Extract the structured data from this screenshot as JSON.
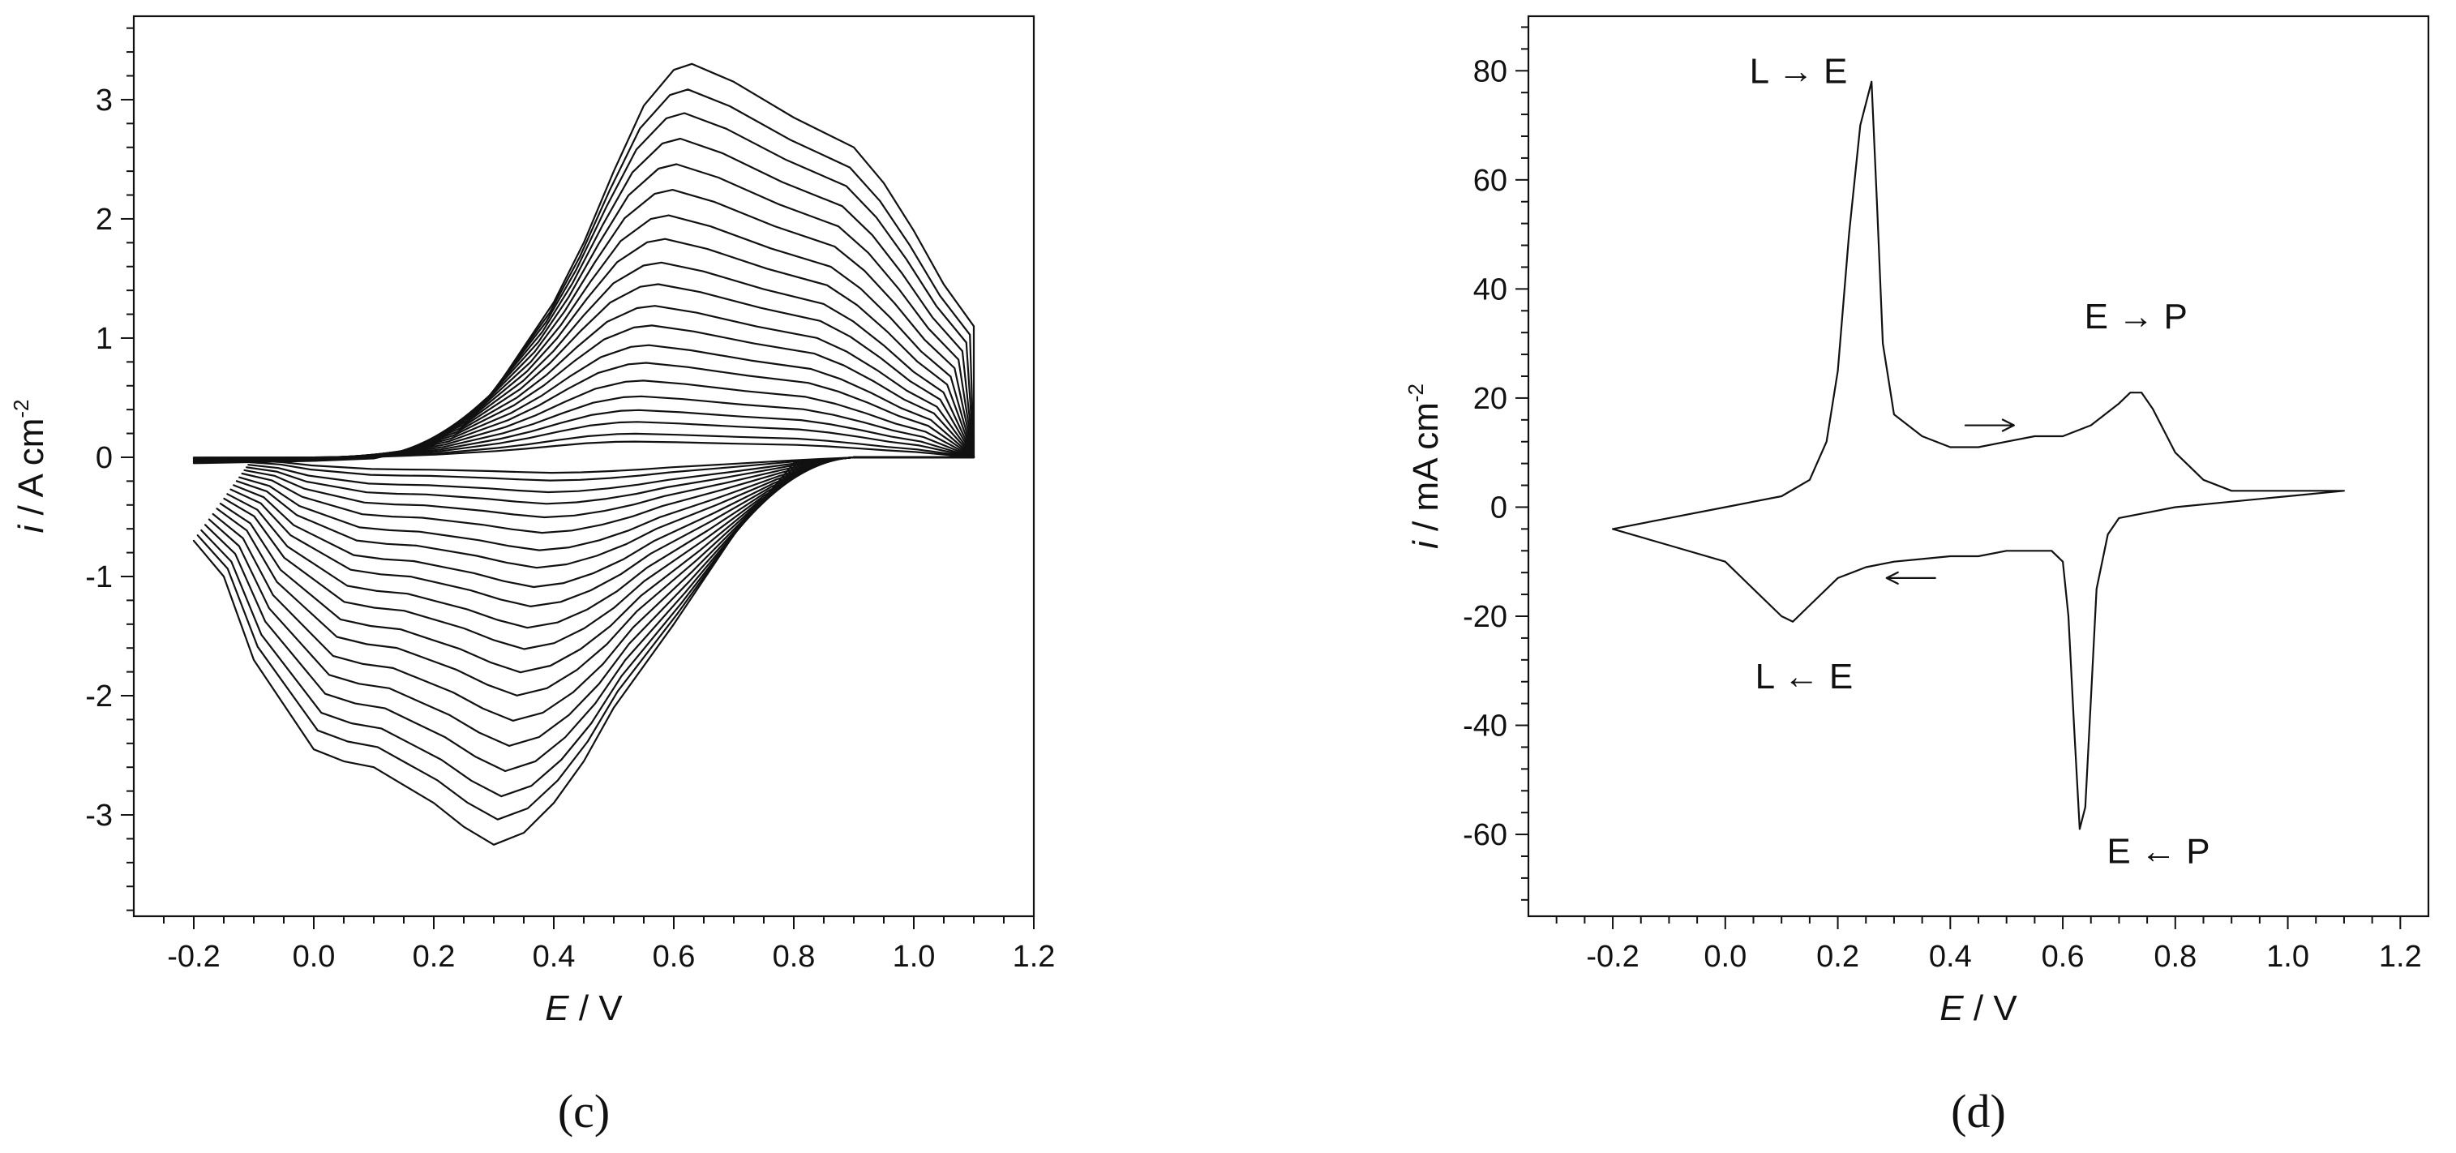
{
  "chart_data": [
    {
      "panel": "(c)",
      "type": "line",
      "xlabel_italic": "E",
      "xlabel_rest": " / V",
      "ylabel_italic": "i",
      "ylabel_rest": " / A cm",
      "ylabel_sup": "-2",
      "xlim": [
        -0.3,
        1.2
      ],
      "ylim": [
        -3.85,
        3.7
      ],
      "xticks": [
        -0.2,
        0.0,
        0.2,
        0.4,
        0.6,
        0.8,
        1.0,
        1.2
      ],
      "yticks": [
        -3,
        -2,
        -1,
        0,
        1,
        2,
        3
      ],
      "xtick_labels": [
        "-0.2",
        "0.0",
        "0.2",
        "0.4",
        "0.6",
        "0.8",
        "1.0",
        "1.2"
      ],
      "ytick_labels": [
        "-3",
        "-2",
        "-1",
        "0",
        "1",
        "2",
        "3"
      ],
      "grid": false,
      "legend": "none",
      "family_scale": [
        1.0,
        0.935,
        0.875,
        0.81,
        0.745,
        0.68,
        0.615,
        0.555,
        0.495,
        0.44,
        0.385,
        0.335,
        0.285,
        0.24,
        0.195,
        0.155,
        0.12,
        0.09,
        0.06,
        0.04
      ],
      "anodic_branch": {
        "x": [
          -0.2,
          0.0,
          0.1,
          0.2,
          0.3,
          0.4,
          0.45,
          0.5,
          0.55,
          0.6,
          0.63,
          0.7,
          0.8,
          0.9,
          0.95,
          1.0,
          1.05,
          1.1
        ],
        "y": [
          -0.05,
          -0.03,
          -0.01,
          0.1,
          0.55,
          1.3,
          1.8,
          2.4,
          2.95,
          3.25,
          3.3,
          3.15,
          2.85,
          2.6,
          2.3,
          1.9,
          1.45,
          1.1
        ]
      },
      "cathodic_branch": {
        "x": [
          1.1,
          1.0,
          0.9,
          0.8,
          0.75,
          0.7,
          0.6,
          0.5,
          0.45,
          0.4,
          0.35,
          0.3,
          0.25,
          0.2,
          0.15,
          0.1,
          0.05,
          0.0,
          -0.1,
          -0.15,
          -0.2
        ],
        "y": [
          0.0,
          0.0,
          0.0,
          -0.05,
          -0.35,
          -0.65,
          -1.4,
          -2.1,
          -2.55,
          -2.9,
          -3.15,
          -3.25,
          -3.1,
          -2.9,
          -2.75,
          -2.6,
          -2.55,
          -2.45,
          -1.7,
          -1.0,
          -0.7
        ]
      }
    },
    {
      "panel": "(d)",
      "type": "line",
      "xlabel_italic": "E",
      "xlabel_rest": " / V",
      "ylabel_italic": "i",
      "ylabel_rest": " / mA cm",
      "ylabel_sup": "-2",
      "xlim": [
        -0.35,
        1.25
      ],
      "ylim": [
        -75,
        90
      ],
      "xticks": [
        -0.2,
        0.0,
        0.2,
        0.4,
        0.6,
        0.8,
        1.0,
        1.2
      ],
      "yticks": [
        -60,
        -40,
        -20,
        0,
        20,
        40,
        60,
        80
      ],
      "xtick_labels": [
        "-0.2",
        "0.0",
        "0.2",
        "0.4",
        "0.6",
        "0.8",
        "1.0",
        "1.2"
      ],
      "ytick_labels": [
        "-60",
        "-40",
        "-20",
        "0",
        "20",
        "40",
        "60",
        "80"
      ],
      "grid": false,
      "legend": "none",
      "anodic_branch": {
        "x": [
          -0.2,
          -0.1,
          0.0,
          0.1,
          0.15,
          0.18,
          0.2,
          0.22,
          0.24,
          0.26,
          0.27,
          0.28,
          0.3,
          0.35,
          0.4,
          0.45,
          0.5,
          0.55,
          0.6,
          0.65,
          0.7,
          0.72,
          0.74,
          0.76,
          0.8,
          0.85,
          0.9,
          1.0,
          1.1
        ],
        "y": [
          -4,
          -2,
          0,
          2,
          5,
          12,
          25,
          50,
          70,
          78,
          55,
          30,
          17,
          13,
          11,
          11,
          12,
          13,
          13,
          15,
          19,
          21,
          21,
          18,
          10,
          5,
          3,
          3,
          3
        ]
      },
      "cathodic_branch": {
        "x": [
          1.1,
          1.0,
          0.9,
          0.8,
          0.7,
          0.68,
          0.66,
          0.65,
          0.64,
          0.63,
          0.62,
          0.61,
          0.6,
          0.58,
          0.55,
          0.5,
          0.45,
          0.4,
          0.35,
          0.3,
          0.25,
          0.2,
          0.15,
          0.12,
          0.1,
          0.05,
          0.0,
          -0.1,
          -0.2
        ],
        "y": [
          3,
          2,
          1,
          0,
          -2,
          -5,
          -15,
          -35,
          -55,
          -59,
          -40,
          -20,
          -10,
          -8,
          -8,
          -8,
          -9,
          -9,
          -9.5,
          -10,
          -11,
          -13,
          -18,
          -21,
          -20,
          -15,
          -10,
          -7,
          -4
        ]
      },
      "annotations": [
        {
          "text": "L → E",
          "x": 0.13,
          "y": 80
        },
        {
          "text": "E → P",
          "x": 0.73,
          "y": 35
        },
        {
          "text": "L ← E",
          "x": 0.14,
          "y": -31
        },
        {
          "text": "E ← P",
          "x": 0.77,
          "y": -63
        }
      ],
      "arrows": [
        {
          "direction": "right",
          "x": 0.47,
          "y": 15
        },
        {
          "direction": "left",
          "x": 0.33,
          "y": -13
        }
      ]
    }
  ]
}
